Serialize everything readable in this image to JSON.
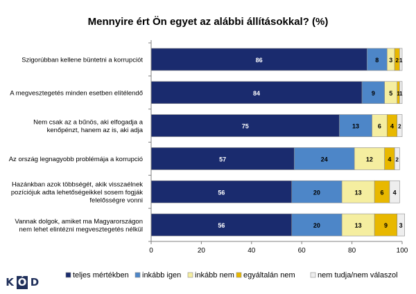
{
  "chart_data": {
    "type": "bar",
    "stacked": true,
    "orientation": "horizontal",
    "title": "Mennyire ért Ön egyet az alábbi állításokkal? (%)",
    "categories": [
      "Szigorúbban kellene büntetni a korrupciót",
      "A megvesztegetés minden esetben elítélendő",
      "Nem csak az a bűnös, aki elfogadja a kenőpénzt, hanem az is, aki adja",
      "Az ország legnagyobb problémája a korrupció",
      "Hazánkban azok többségét, akik visszaélnek pozíciójuk adta lehetőségeikkel sosem fogják felelősségre vonni",
      "Vannak dolgok, amiket ma Magyarországon nem lehet elintézni megvesztegetés nélkül"
    ],
    "category_lines": [
      [
        "Szigorúbban kellene büntetni a korrupciót"
      ],
      [
        "A megvesztegetés minden esetben elítélendő"
      ],
      [
        "Nem csak az a bűnös, aki elfogadja a",
        "kenőpénzt, hanem az is, aki adja"
      ],
      [
        "Az ország legnagyobb problémája a korrupció"
      ],
      [
        "Hazánkban azok többségét, akik visszaélnek",
        "pozíciójuk adta lehetőségeikkel sosem fogják",
        "felelősségre vonni"
      ],
      [
        "Vannak dolgok, amiket ma Magyarországon",
        "nem lehet elintézni megvesztegetés nélkül"
      ]
    ],
    "series": [
      {
        "name": "teljes mértékben",
        "values": [
          86,
          84,
          75,
          57,
          56,
          56
        ],
        "color": "#1a2b6e"
      },
      {
        "name": "inkább igen",
        "values": [
          8,
          9,
          13,
          24,
          20,
          20
        ],
        "color": "#4d86c8"
      },
      {
        "name": "inkább nem",
        "values": [
          3,
          5,
          6,
          12,
          13,
          13
        ],
        "color": "#f5eea0"
      },
      {
        "name": "egyáltalán nem",
        "values": [
          2,
          1,
          4,
          4,
          6,
          9
        ],
        "color": "#e8b800"
      },
      {
        "name": "nem tudja/nem válaszol",
        "values": [
          1,
          1,
          2,
          2,
          4,
          3
        ],
        "color": "#eeeeee"
      }
    ],
    "xlim": [
      0,
      100
    ],
    "xticks": [
      0,
      20,
      40,
      60,
      80,
      100
    ],
    "grid": false,
    "legend": "bottom"
  },
  "logo": [
    "K",
    "Ó",
    "D"
  ]
}
